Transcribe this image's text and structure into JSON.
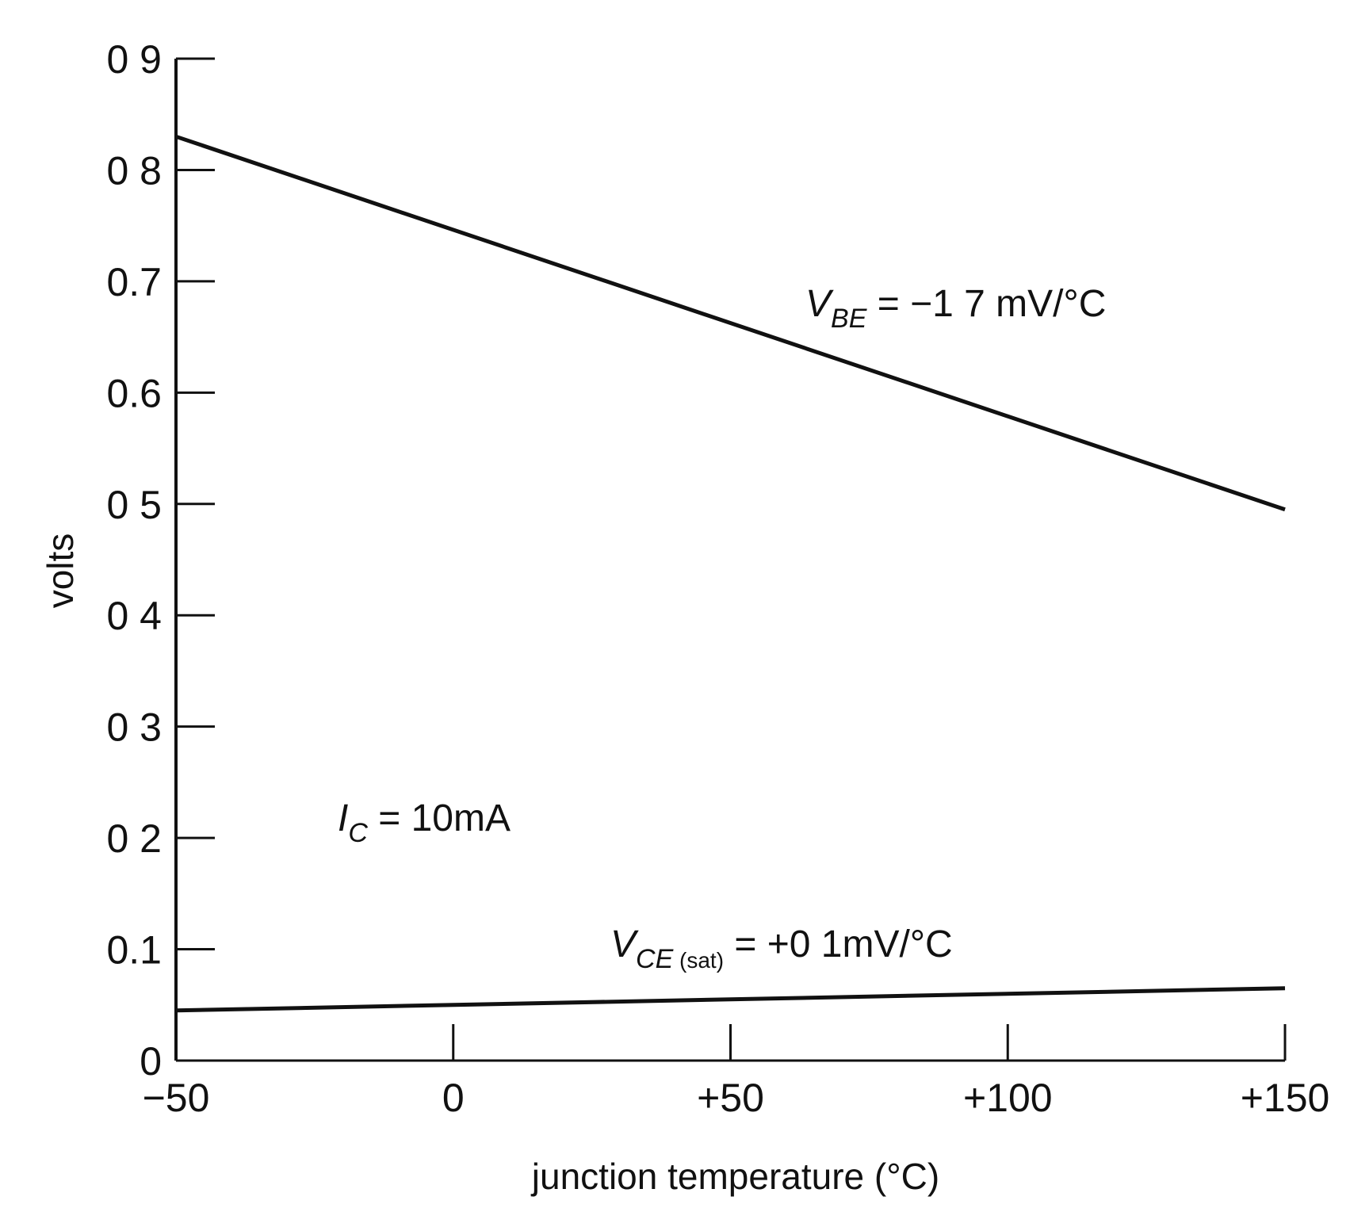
{
  "chart_data": {
    "type": "line",
    "title": "",
    "xlabel": "junction temperature (°C)",
    "ylabel": "volts",
    "xlim": [
      -50,
      150
    ],
    "ylim": [
      0,
      0.9
    ],
    "grid": false,
    "x_ticks": [
      -50,
      0,
      50,
      100,
      150
    ],
    "x_tick_labels": [
      "−50",
      "0",
      "+50",
      "+100",
      "+150"
    ],
    "y_ticks": [
      0,
      0.1,
      0.2,
      0.3,
      0.4,
      0.5,
      0.6,
      0.7,
      0.8,
      0.9
    ],
    "y_tick_labels": [
      "0",
      "0.1",
      "0 2",
      "0 3",
      "0 4",
      "0 5",
      "0.6",
      "0.7",
      "0 8",
      "0 9"
    ],
    "series": [
      {
        "name": "V_BE",
        "x": [
          -50,
          150
        ],
        "y": [
          0.83,
          0.495
        ]
      },
      {
        "name": "V_CE(sat)",
        "x": [
          -50,
          150
        ],
        "y": [
          0.045,
          0.065
        ]
      }
    ],
    "annotations": {
      "vbe": {
        "main": "V",
        "sub": "BE",
        "rest": " = −1 7 mV/°C"
      },
      "ic": {
        "main": "I",
        "sub": "C",
        "rest": " = 10mA"
      },
      "vce": {
        "main": "V",
        "sub": "CE",
        "sub2": " (sat)",
        "rest": " = +0 1mV/°C"
      }
    },
    "color": "#111111"
  }
}
